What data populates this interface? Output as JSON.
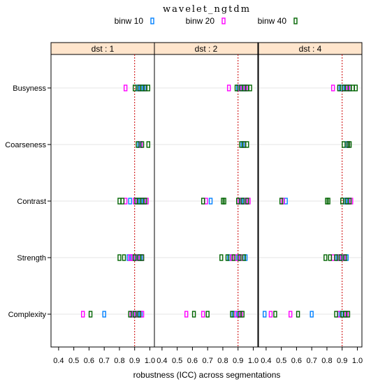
{
  "chart_data": {
    "type": "scatter",
    "title": "wavelet_ngtdm",
    "xlabel": "robustness (ICC) across segmentations",
    "xlim": [
      0.35,
      1.03
    ],
    "x_ticks": [
      0.4,
      0.5,
      0.6,
      0.7,
      0.8,
      0.9,
      1.0
    ],
    "x_tick_labels": [
      "0.4",
      "0.5",
      "0.6",
      "0.7",
      "0.8",
      "0.9",
      "1.0"
    ],
    "reference_line": 0.9,
    "categories": [
      "Busyness",
      "Coarseness",
      "Contrast",
      "Strength",
      "Complexity"
    ],
    "legend": {
      "position": "top",
      "entries": [
        {
          "name": "binw 10",
          "color": "#0080ff"
        },
        {
          "name": "binw 20",
          "color": "#ff00ff"
        },
        {
          "name": "binw 40",
          "color": "#006400"
        }
      ]
    },
    "panels": [
      {
        "strip": "dst : 1",
        "series": [
          {
            "name": "binw 10",
            "points": {
              "Busyness": [
                0.92,
                0.94,
                0.96
              ],
              "Coarseness": [
                0.93,
                0.94
              ],
              "Contrast": [
                0.87,
                0.92,
                0.94,
                0.96
              ],
              "Strength": [
                0.86,
                0.88,
                0.91,
                0.94
              ],
              "Complexity": [
                0.7,
                0.89,
                0.92,
                0.94
              ]
            }
          },
          {
            "name": "binw 20",
            "points": {
              "Busyness": [
                0.84,
                0.93,
                0.97
              ],
              "Coarseness": [
                0.94
              ],
              "Contrast": [
                0.84,
                0.9,
                0.95,
                0.98
              ],
              "Strength": [
                0.87,
                0.89,
                0.92,
                0.95
              ],
              "Complexity": [
                0.56,
                0.88,
                0.91,
                0.95
              ]
            }
          },
          {
            "name": "binw 40",
            "points": {
              "Busyness": [
                0.9,
                0.93,
                0.95,
                0.97,
                0.99
              ],
              "Coarseness": [
                0.92,
                0.95,
                0.99
              ],
              "Contrast": [
                0.8,
                0.82,
                0.91,
                0.93,
                0.95,
                0.97
              ],
              "Strength": [
                0.8,
                0.83,
                0.9,
                0.93,
                0.95
              ],
              "Complexity": [
                0.61,
                0.87,
                0.9,
                0.93
              ]
            }
          }
        ]
      },
      {
        "strip": "dst : 2",
        "series": [
          {
            "name": "binw 10",
            "points": {
              "Busyness": [
                0.9,
                0.93,
                0.95
              ],
              "Coarseness": [
                0.93
              ],
              "Contrast": [
                0.72,
                0.92,
                0.94
              ],
              "Strength": [
                0.84,
                0.9,
                0.95
              ],
              "Complexity": [
                0.87,
                0.9
              ]
            }
          },
          {
            "name": "binw 20",
            "points": {
              "Busyness": [
                0.84,
                0.91,
                0.95
              ],
              "Coarseness": [
                0.94
              ],
              "Contrast": [
                0.69,
                0.91,
                0.95,
                0.97
              ],
              "Strength": [
                0.86,
                0.89,
                0.92
              ],
              "Complexity": [
                0.56,
                0.67,
                0.89,
                0.92
              ]
            }
          },
          {
            "name": "binw 40",
            "points": {
              "Busyness": [
                0.89,
                0.92,
                0.94,
                0.96,
                0.98
              ],
              "Coarseness": [
                0.92,
                0.94,
                0.96
              ],
              "Contrast": [
                0.67,
                0.8,
                0.81,
                0.9,
                0.93,
                0.96
              ],
              "Strength": [
                0.79,
                0.83,
                0.87,
                0.91,
                0.94
              ],
              "Complexity": [
                0.61,
                0.7,
                0.86,
                0.91,
                0.93
              ]
            }
          }
        ]
      },
      {
        "strip": "dst : 4",
        "series": [
          {
            "name": "binw 10",
            "points": {
              "Busyness": [
                0.89,
                0.92,
                0.95
              ],
              "Coarseness": [
                0.93
              ],
              "Contrast": [
                0.53,
                0.92,
                0.94
              ],
              "Strength": [
                0.87,
                0.9,
                0.93
              ],
              "Complexity": [
                0.39,
                0.7,
                0.89,
                0.92
              ]
            }
          },
          {
            "name": "binw 20",
            "points": {
              "Busyness": [
                0.84,
                0.91,
                0.94
              ],
              "Coarseness": [
                0.94
              ],
              "Contrast": [
                0.51,
                0.93,
                0.96
              ],
              "Strength": [
                0.84,
                0.88,
                0.91
              ],
              "Complexity": [
                0.43,
                0.56,
                0.88,
                0.93
              ]
            }
          },
          {
            "name": "binw 40",
            "points": {
              "Busyness": [
                0.88,
                0.91,
                0.93,
                0.95,
                0.97,
                0.99
              ],
              "Coarseness": [
                0.91,
                0.94,
                0.95
              ],
              "Contrast": [
                0.5,
                0.8,
                0.81,
                0.9,
                0.93,
                0.95
              ],
              "Strength": [
                0.79,
                0.82,
                0.86,
                0.89,
                0.92
              ],
              "Complexity": [
                0.46,
                0.61,
                0.86,
                0.9,
                0.92,
                0.94
              ]
            }
          }
        ]
      }
    ]
  }
}
